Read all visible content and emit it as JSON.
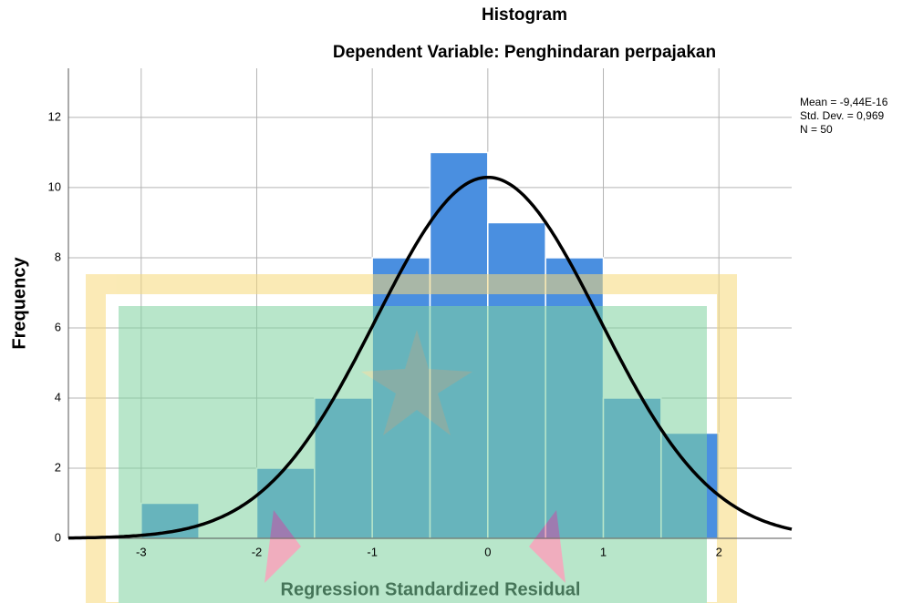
{
  "chart_data": {
    "type": "histogram",
    "title": "Histogram",
    "subtitle": "Dependent Variable: Penghindaran perpajakan",
    "x_label": "Regression Standardized Residual",
    "y_label": "Frequency",
    "bins": [
      -3.0,
      -2.5,
      -2.0,
      -1.5,
      -1.0,
      -0.5,
      0.0,
      0.5,
      1.0,
      1.5,
      2.0
    ],
    "counts": [
      1,
      0,
      2,
      4,
      8,
      11,
      9,
      8,
      4,
      3
    ],
    "color": "#4a8fe0",
    "edge_color": "#ffffff",
    "xlim": [
      -3.63,
      2.63
    ],
    "ylim": [
      0,
      13.4
    ],
    "xticks": [
      -3,
      -2,
      -1,
      0,
      1,
      2
    ],
    "yticks": [
      0,
      2,
      4,
      6,
      8,
      10,
      12
    ],
    "grid": true,
    "annotations": [
      "Mean = -9,44E-16",
      "Std. Dev. = 0,969",
      "N = 50"
    ],
    "normal_curve": {
      "mean": -9.44e-16,
      "std": 0.969,
      "n": 50,
      "color": "#000000"
    }
  }
}
